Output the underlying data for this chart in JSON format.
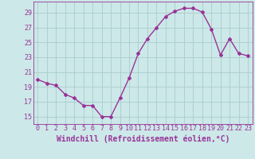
{
  "x": [
    0,
    1,
    2,
    3,
    4,
    5,
    6,
    7,
    8,
    9,
    10,
    11,
    12,
    13,
    14,
    15,
    16,
    17,
    18,
    19,
    20,
    21,
    22,
    23
  ],
  "y": [
    20.0,
    19.5,
    19.2,
    18.0,
    17.5,
    16.5,
    16.5,
    15.0,
    15.0,
    17.5,
    20.2,
    23.5,
    25.5,
    27.0,
    28.5,
    29.2,
    29.6,
    29.6,
    29.1,
    26.8,
    23.3,
    25.5,
    23.5,
    23.2
  ],
  "line_color": "#993399",
  "marker": "D",
  "marker_size": 2.0,
  "background_color": "#cce8e8",
  "grid_color": "#aacccc",
  "xlabel": "Windchill (Refroidissement éolien,°C)",
  "xlabel_fontsize": 7,
  "xlim": [
    -0.5,
    23.5
  ],
  "ylim": [
    14.0,
    30.5
  ],
  "yticks": [
    15,
    17,
    19,
    21,
    23,
    25,
    27,
    29
  ],
  "xticks": [
    0,
    1,
    2,
    3,
    4,
    5,
    6,
    7,
    8,
    9,
    10,
    11,
    12,
    13,
    14,
    15,
    16,
    17,
    18,
    19,
    20,
    21,
    22,
    23
  ],
  "tick_fontsize": 6,
  "line_width": 1.0
}
